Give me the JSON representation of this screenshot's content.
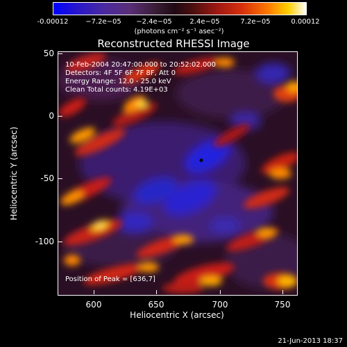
{
  "colorbar": {
    "ticks": [
      "-0.00012",
      "−7.2e−05",
      "−2.4e−05",
      "2.4e−05",
      "7.2e−05",
      "0.00012"
    ],
    "units": "(photons cm⁻² s⁻¹ asec⁻²)",
    "colors": [
      "#0000ff",
      "#5a2f78",
      "#200a14",
      "#a01812",
      "#ff7a00",
      "#ffd000",
      "#ffffff"
    ]
  },
  "title": "Reconstructed RHESSI Image",
  "info": {
    "time_range": "10-Feb-2004 20:47:00.000 to 20:52:02.000",
    "detectors": "Detectors: 4F 5F 6F 7F 8F, Att 0",
    "energy": "Energy Range: 12.0 - 25.0 keV",
    "clean": "Clean     Total counts: 4.19E+03",
    "peak": "Position of Peak = [636,7]"
  },
  "axes": {
    "xlabel": "Heliocentric X (arcsec)",
    "ylabel": "Heliocentric Y (arcsec)",
    "xticks": [
      "600",
      "650",
      "700",
      "750"
    ],
    "yticks": [
      "50",
      "0",
      "-50",
      "-100"
    ]
  },
  "footer": {
    "date": "21-Jun-2013 18:37"
  }
}
